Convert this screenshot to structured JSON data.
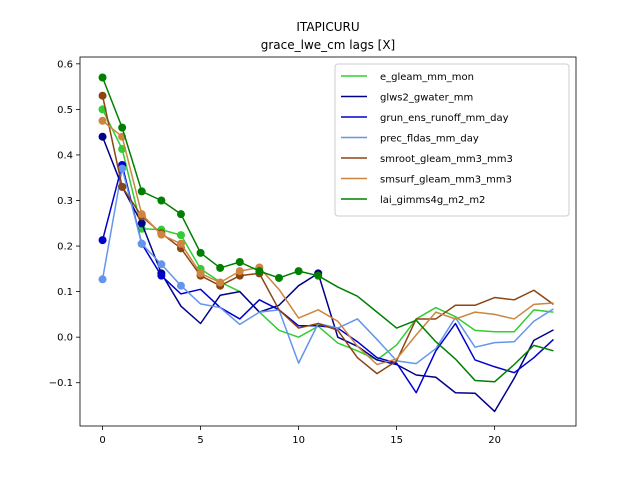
{
  "chart_data": {
    "type": "line",
    "title": "ITAPICURU",
    "subtitle": "grace_lwe_cm lags [X]",
    "xlabel": "",
    "ylabel": "",
    "xlim": [
      -1.15,
      24.15
    ],
    "ylim": [
      -0.195,
      0.615
    ],
    "xticks": [
      0,
      5,
      10,
      15,
      20
    ],
    "yticks": [
      -0.1,
      0.0,
      0.1,
      0.2,
      0.3,
      0.4,
      0.5,
      0.6
    ],
    "ytick_labels": [
      "−0.1",
      "0.0",
      "0.1",
      "0.2",
      "0.3",
      "0.4",
      "0.5",
      "0.6"
    ],
    "grid": false,
    "legend_position": "upper right",
    "series": [
      {
        "name": "e_gleam_mm_mon",
        "color": "#32cd32",
        "values": [
          0.5,
          0.413,
          0.238,
          0.236,
          0.224,
          0.15,
          0.121,
          0.1,
          0.055,
          0.015,
          0.0,
          0.024,
          -0.013,
          -0.03,
          -0.05,
          -0.017,
          0.04,
          0.065,
          0.045,
          0.015,
          0.012,
          0.012,
          0.06,
          0.055
        ],
        "markers": [
          0,
          1,
          2,
          3,
          4,
          5
        ]
      },
      {
        "name": "glws2_gwater_mm",
        "color": "#00008b",
        "values": [
          0.44,
          0.33,
          0.25,
          0.14,
          0.068,
          0.03,
          0.092,
          0.1,
          0.055,
          0.07,
          0.113,
          0.14,
          0.0,
          -0.02,
          -0.05,
          -0.06,
          -0.083,
          -0.088,
          -0.122,
          -0.123,
          -0.163,
          -0.09,
          -0.007,
          0.016
        ],
        "markers": [
          0,
          1,
          2,
          3,
          11
        ]
      },
      {
        "name": "grun_ens_runoff_mm_day",
        "color": "#0000cd",
        "values": [
          0.213,
          0.378,
          0.205,
          0.135,
          0.095,
          0.105,
          0.065,
          0.04,
          0.082,
          0.06,
          0.025,
          0.025,
          0.02,
          -0.01,
          -0.045,
          -0.057,
          -0.122,
          -0.03,
          0.03,
          -0.05,
          -0.065,
          -0.078,
          -0.045,
          -0.005
        ],
        "markers": [
          0,
          1,
          2,
          3
        ]
      },
      {
        "name": "prec_fldas_mm_day",
        "color": "#6495ed",
        "values": [
          0.127,
          0.37,
          0.205,
          0.16,
          0.113,
          0.073,
          0.065,
          0.028,
          0.055,
          0.06,
          -0.057,
          0.03,
          0.02,
          0.04,
          -0.005,
          -0.052,
          -0.058,
          -0.025,
          0.043,
          -0.022,
          -0.012,
          -0.01,
          0.035,
          0.062
        ],
        "markers": [
          0,
          1,
          2,
          3,
          4
        ]
      },
      {
        "name": "smroot_gleam_mm3_mm3",
        "color": "#8b4513",
        "values": [
          0.53,
          0.33,
          0.265,
          0.228,
          0.195,
          0.135,
          0.113,
          0.135,
          0.14,
          0.06,
          0.02,
          0.03,
          0.015,
          -0.045,
          -0.08,
          -0.052,
          0.04,
          0.04,
          0.07,
          0.07,
          0.087,
          0.082,
          0.103,
          0.072
        ],
        "markers": [
          0,
          1,
          2,
          3,
          4,
          5,
          6,
          7,
          8
        ]
      },
      {
        "name": "smsurf_gleam_mm3_mm3",
        "color": "#cd853f",
        "values": [
          0.475,
          0.44,
          0.27,
          0.225,
          0.205,
          0.14,
          0.12,
          0.145,
          0.153,
          0.105,
          0.042,
          0.06,
          0.035,
          -0.02,
          -0.06,
          -0.048,
          0.005,
          0.055,
          0.04,
          0.055,
          0.05,
          0.04,
          0.072,
          0.075
        ],
        "markers": [
          0,
          1,
          2,
          3,
          4,
          5,
          6,
          7,
          8
        ]
      },
      {
        "name": "lai_gimms4g_m2_m2",
        "color": "#008000",
        "values": [
          0.57,
          0.46,
          0.32,
          0.3,
          0.27,
          0.185,
          0.152,
          0.165,
          0.145,
          0.13,
          0.145,
          0.135,
          0.11,
          0.09,
          0.055,
          0.02,
          0.037,
          -0.01,
          -0.048,
          -0.095,
          -0.098,
          -0.06,
          -0.018,
          -0.03
        ],
        "markers": [
          0,
          1,
          2,
          3,
          4,
          5,
          6,
          7,
          8,
          9,
          10,
          11
        ]
      }
    ]
  }
}
